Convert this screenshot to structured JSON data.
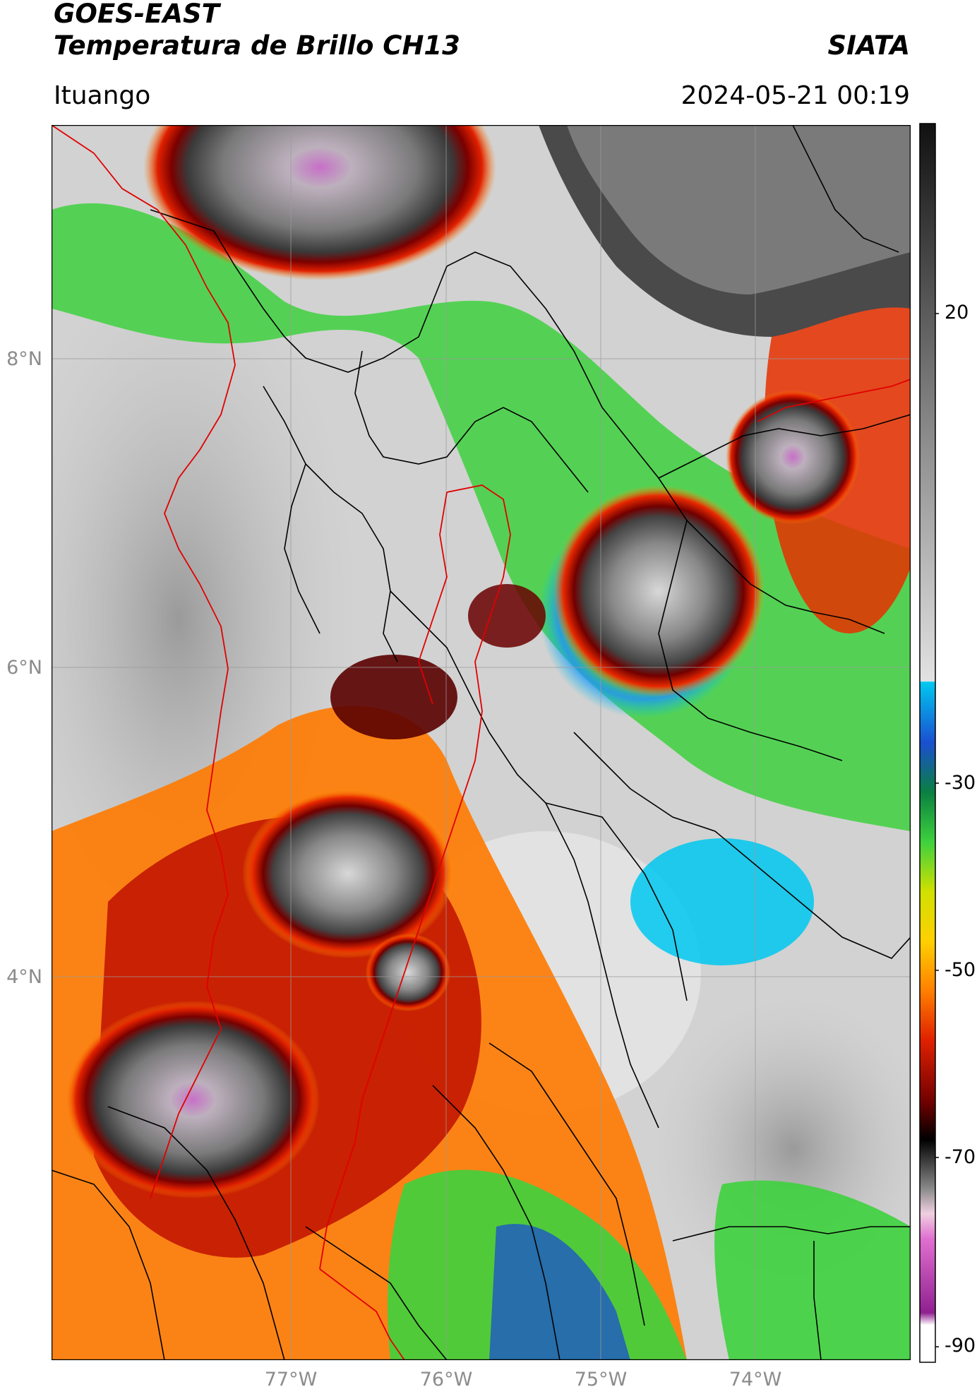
{
  "header": {
    "satellite": "GOES-EAST",
    "product": "Temperatura de Brillo CH13",
    "organization": "SIATA",
    "location": "Ituango",
    "timestamp": "2024-05-21 00:19"
  },
  "map": {
    "lat_labels": [
      "8°N",
      "6°N",
      "4°N"
    ],
    "lon_labels": [
      "77°W",
      "76°W",
      "75°W",
      "74°W"
    ],
    "extent": {
      "lon": [
        -78.55,
        -72.95
      ],
      "lat": [
        1.5,
        9.5
      ]
    },
    "gridlines": true
  },
  "colorbar": {
    "tick_labels": [
      "20",
      "-30",
      "-50",
      "-70",
      "-90"
    ],
    "units_range": [
      -92,
      32
    ]
  }
}
